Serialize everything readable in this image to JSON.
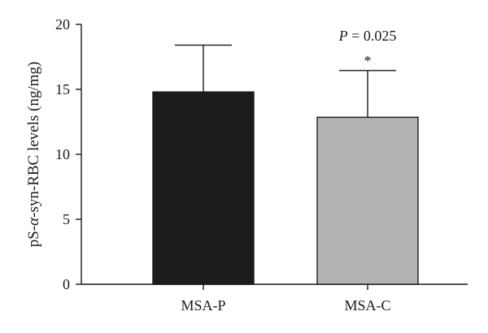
{
  "chart_data": {
    "type": "bar",
    "categories": [
      "MSA-P",
      "MSA-C"
    ],
    "values": [
      14.8,
      12.85
    ],
    "errors": [
      3.6,
      3.6
    ],
    "colors": [
      "#1c1c1c",
      "#b3b3b3"
    ],
    "ylabel_parts": [
      "pS-",
      "α",
      "-syn-RBC levels (ng/mg)"
    ],
    "ylim": [
      0,
      20
    ],
    "yticks": [
      "0",
      "5",
      "10",
      "15",
      "20"
    ],
    "annotation": {
      "p_symbol": "P",
      "p_text": " = 0.025",
      "star": "*"
    },
    "grid": false,
    "legend": false
  }
}
